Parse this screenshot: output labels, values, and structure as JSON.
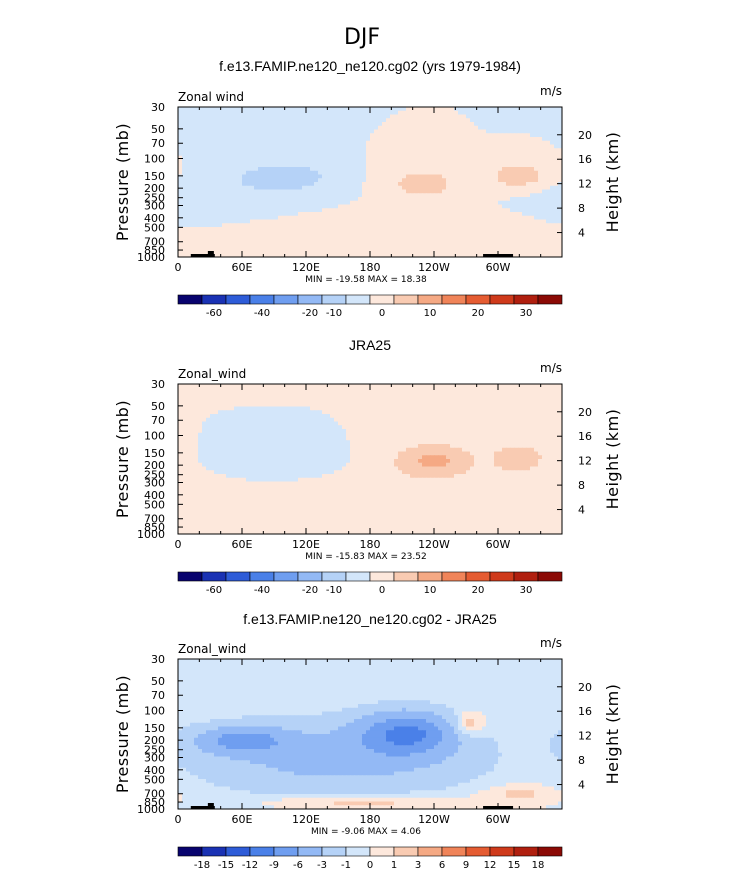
{
  "figure": {
    "title": "DJF"
  },
  "chart_data": [
    {
      "type": "heatmap",
      "title": "f.e13.FAMIP.ne120_ne120.cg02 (yrs 1979-1984)",
      "variable": "Zonal wind",
      "units": "m/s",
      "ylabel": "Pressure (mb)",
      "ylabel_right": "Height (km)",
      "x_ticks": [
        "0",
        "60E",
        "120E",
        "180",
        "120W",
        "60W"
      ],
      "y_ticks": [
        "30",
        "50",
        "70",
        "100",
        "150",
        "200",
        "250",
        "300",
        "400",
        "500",
        "700",
        "850",
        "1000"
      ],
      "height_ticks": [
        "20",
        "16",
        "12",
        "8",
        "4"
      ],
      "minmax": "MIN = -19.58   MAX =  18.38",
      "min": -19.58,
      "max": 18.38,
      "colorbar_ticks": [
        "-60",
        "-40",
        "-20",
        "-10",
        "0",
        "10",
        "20",
        "30"
      ],
      "colorbar_colors": [
        "#08036e",
        "#1a32b4",
        "#2e5cd8",
        "#4a80e8",
        "#6f9ef0",
        "#93b9f5",
        "#b5d2f7",
        "#d3e6fa",
        "#fde8dc",
        "#f9cbb2",
        "#f5a984",
        "#f08459",
        "#e55c32",
        "#cf3a1b",
        "#b01f0f",
        "#8b0a05"
      ],
      "features": [
        {
          "kind": "neg",
          "lon": 100,
          "p": 150,
          "strength": -16,
          "w": 30,
          "h": 0.22
        },
        {
          "kind": "neg",
          "lon": 60,
          "p": 220,
          "strength": -6,
          "w": 60,
          "h": 0.35
        },
        {
          "kind": "pos",
          "lon": 230,
          "p": 180,
          "strength": 15,
          "w": 25,
          "h": 0.28
        },
        {
          "kind": "pos",
          "lon": 320,
          "p": 150,
          "strength": 18,
          "w": 20,
          "h": 0.22
        },
        {
          "kind": "pos",
          "lon": 190,
          "p": 500,
          "strength": 3,
          "w": 80,
          "h": 0.4
        },
        {
          "kind": "pos",
          "lon": 20,
          "p": 850,
          "strength": 4,
          "w": 40,
          "h": 0.12
        }
      ]
    },
    {
      "type": "heatmap",
      "title": "JRA25",
      "variable": "Zonal_wind",
      "units": "m/s",
      "ylabel": "Pressure (mb)",
      "ylabel_right": "Height (km)",
      "x_ticks": [
        "0",
        "60E",
        "120E",
        "180",
        "120W",
        "60W"
      ],
      "y_ticks": [
        "30",
        "50",
        "70",
        "100",
        "150",
        "200",
        "250",
        "300",
        "400",
        "500",
        "700",
        "850",
        "1000"
      ],
      "height_ticks": [
        "20",
        "16",
        "12",
        "8",
        "4"
      ],
      "minmax": "MIN = -15.83   MAX =  23.52",
      "min": -15.83,
      "max": 23.52,
      "colorbar_ticks": [
        "-60",
        "-40",
        "-20",
        "-10",
        "0",
        "10",
        "20",
        "30"
      ],
      "colorbar_colors": [
        "#08036e",
        "#1a32b4",
        "#2e5cd8",
        "#4a80e8",
        "#6f9ef0",
        "#93b9f5",
        "#b5d2f7",
        "#d3e6fa",
        "#fde8dc",
        "#f9cbb2",
        "#f5a984",
        "#f08459",
        "#e55c32",
        "#cf3a1b",
        "#b01f0f",
        "#8b0a05"
      ],
      "features": [
        {
          "kind": "neg",
          "lon": 100,
          "p": 180,
          "strength": -8,
          "w": 28,
          "h": 0.25
        },
        {
          "kind": "pos",
          "lon": 240,
          "p": 180,
          "strength": 22,
          "w": 28,
          "h": 0.3
        },
        {
          "kind": "pos",
          "lon": 320,
          "p": 170,
          "strength": 18,
          "w": 18,
          "h": 0.25
        },
        {
          "kind": "pos",
          "lon": 200,
          "p": 450,
          "strength": 4,
          "w": 90,
          "h": 0.45
        },
        {
          "kind": "pos",
          "lon": 50,
          "p": 750,
          "strength": 3,
          "w": 50,
          "h": 0.15
        }
      ]
    },
    {
      "type": "heatmap",
      "title": "f.e13.FAMIP.ne120_ne120.cg02 - JRA25",
      "variable": "Zonal_wind",
      "units": "m/s",
      "ylabel": "Pressure (mb)",
      "ylabel_right": "Height (km)",
      "x_ticks": [
        "0",
        "60E",
        "120E",
        "180",
        "120W",
        "60W"
      ],
      "y_ticks": [
        "30",
        "50",
        "70",
        "100",
        "150",
        "200",
        "250",
        "300",
        "400",
        "500",
        "700",
        "850",
        "1000"
      ],
      "height_ticks": [
        "20",
        "16",
        "12",
        "8",
        "4"
      ],
      "minmax": "MIN =  -9.06   MAX =   4.06",
      "min": -9.06,
      "max": 4.06,
      "colorbar_ticks": [
        "-18",
        "-15",
        "-12",
        "-9",
        "-6",
        "-3",
        "-1",
        "0",
        "1",
        "3",
        "6",
        "9",
        "12",
        "15",
        "18"
      ],
      "colorbar_colors": [
        "#08036e",
        "#1a32b4",
        "#2e5cd8",
        "#4a80e8",
        "#6f9ef0",
        "#93b9f5",
        "#b5d2f7",
        "#d3e6fa",
        "#fde8dc",
        "#f9cbb2",
        "#f5a984",
        "#f08459",
        "#e55c32",
        "#cf3a1b",
        "#b01f0f",
        "#8b0a05"
      ],
      "features": [
        {
          "kind": "neg",
          "lon": 215,
          "p": 170,
          "strength": -8.5,
          "w": 30,
          "h": 0.35
        },
        {
          "kind": "neg",
          "lon": 60,
          "p": 200,
          "strength": -6,
          "w": 30,
          "h": 0.22
        },
        {
          "kind": "neg",
          "lon": 150,
          "p": 300,
          "strength": -4,
          "w": 90,
          "h": 0.6
        },
        {
          "kind": "pos",
          "lon": 272,
          "p": 140,
          "strength": 3,
          "w": 10,
          "h": 0.2
        },
        {
          "kind": "pos",
          "lon": 170,
          "p": 850,
          "strength": 2,
          "w": 60,
          "h": 0.12
        },
        {
          "kind": "pos",
          "lon": 320,
          "p": 700,
          "strength": 1.5,
          "w": 25,
          "h": 0.15
        }
      ]
    }
  ]
}
